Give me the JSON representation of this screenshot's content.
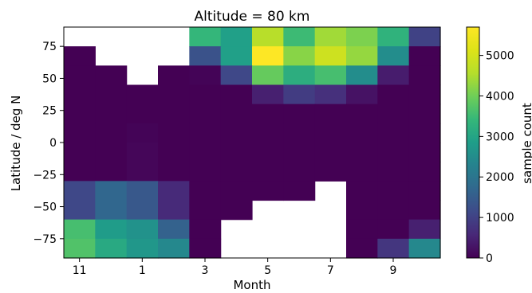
{
  "chart_data": {
    "type": "heatmap",
    "title": "Altitude = 80 km",
    "xlabel": "Month",
    "ylabel": "Latitude / deg N",
    "colorbar_label": "sample count",
    "colormap": "viridis",
    "vmin": 0,
    "vmax": 5700,
    "x_months": [
      11,
      12,
      1,
      2,
      3,
      4,
      5,
      6,
      7,
      8,
      9,
      10
    ],
    "xlim": [
      10.5,
      22.5
    ],
    "x_ticks": [
      11,
      13,
      15,
      17,
      19,
      21
    ],
    "x_tick_labels": [
      "11",
      "1",
      "3",
      "5",
      "7",
      "9"
    ],
    "ylim": [
      -90,
      90
    ],
    "y_ticks": [
      75,
      50,
      25,
      0,
      -25,
      -50,
      -75
    ],
    "y_tick_labels": [
      "75",
      "50",
      "25",
      "0",
      "−25",
      "−50",
      "−75"
    ],
    "colorbar_ticks": [
      0,
      1000,
      2000,
      3000,
      4000,
      5000
    ],
    "colorbar_tick_labels": [
      "0",
      "1000",
      "2000",
      "3000",
      "4000",
      "5000"
    ],
    "lat_bands": [
      [
        75,
        90
      ],
      [
        60,
        75
      ],
      [
        45,
        60
      ],
      [
        30,
        45
      ],
      [
        15,
        30
      ],
      [
        0,
        15
      ],
      [
        -15,
        0
      ],
      [
        -30,
        -15
      ],
      [
        -45,
        -30
      ],
      [
        -60,
        -45
      ],
      [
        -75,
        -60
      ],
      [
        -90,
        -75
      ]
    ],
    "values": [
      [
        null,
        null,
        null,
        null,
        3400,
        2900,
        4600,
        3500,
        4400,
        4100,
        3300,
        1000
      ],
      [
        0,
        null,
        null,
        null,
        1300,
        2900,
        5700,
        4200,
        4900,
        4300,
        2500,
        0
      ],
      [
        0,
        0,
        null,
        0,
        50,
        1100,
        3900,
        3200,
        3600,
        2500,
        400,
        0
      ],
      [
        0,
        0,
        0,
        0,
        0,
        0,
        450,
        900,
        700,
        250,
        0,
        0
      ],
      [
        0,
        0,
        0,
        0,
        0,
        0,
        0,
        0,
        0,
        0,
        0,
        0
      ],
      [
        0,
        0,
        50,
        0,
        0,
        0,
        0,
        0,
        0,
        0,
        0,
        0
      ],
      [
        0,
        0,
        80,
        0,
        0,
        0,
        0,
        0,
        0,
        0,
        0,
        0
      ],
      [
        0,
        0,
        80,
        0,
        0,
        0,
        0,
        0,
        0,
        0,
        0,
        0
      ],
      [
        1100,
        1700,
        1400,
        600,
        0,
        0,
        0,
        0,
        null,
        0,
        0,
        0
      ],
      [
        1100,
        1700,
        1400,
        600,
        0,
        0,
        null,
        null,
        null,
        0,
        0,
        0
      ],
      [
        3600,
        2800,
        2600,
        1600,
        0,
        null,
        null,
        null,
        null,
        0,
        0,
        450
      ],
      [
        3700,
        3100,
        2700,
        2400,
        0,
        null,
        null,
        null,
        null,
        0,
        800,
        2400
      ]
    ]
  }
}
